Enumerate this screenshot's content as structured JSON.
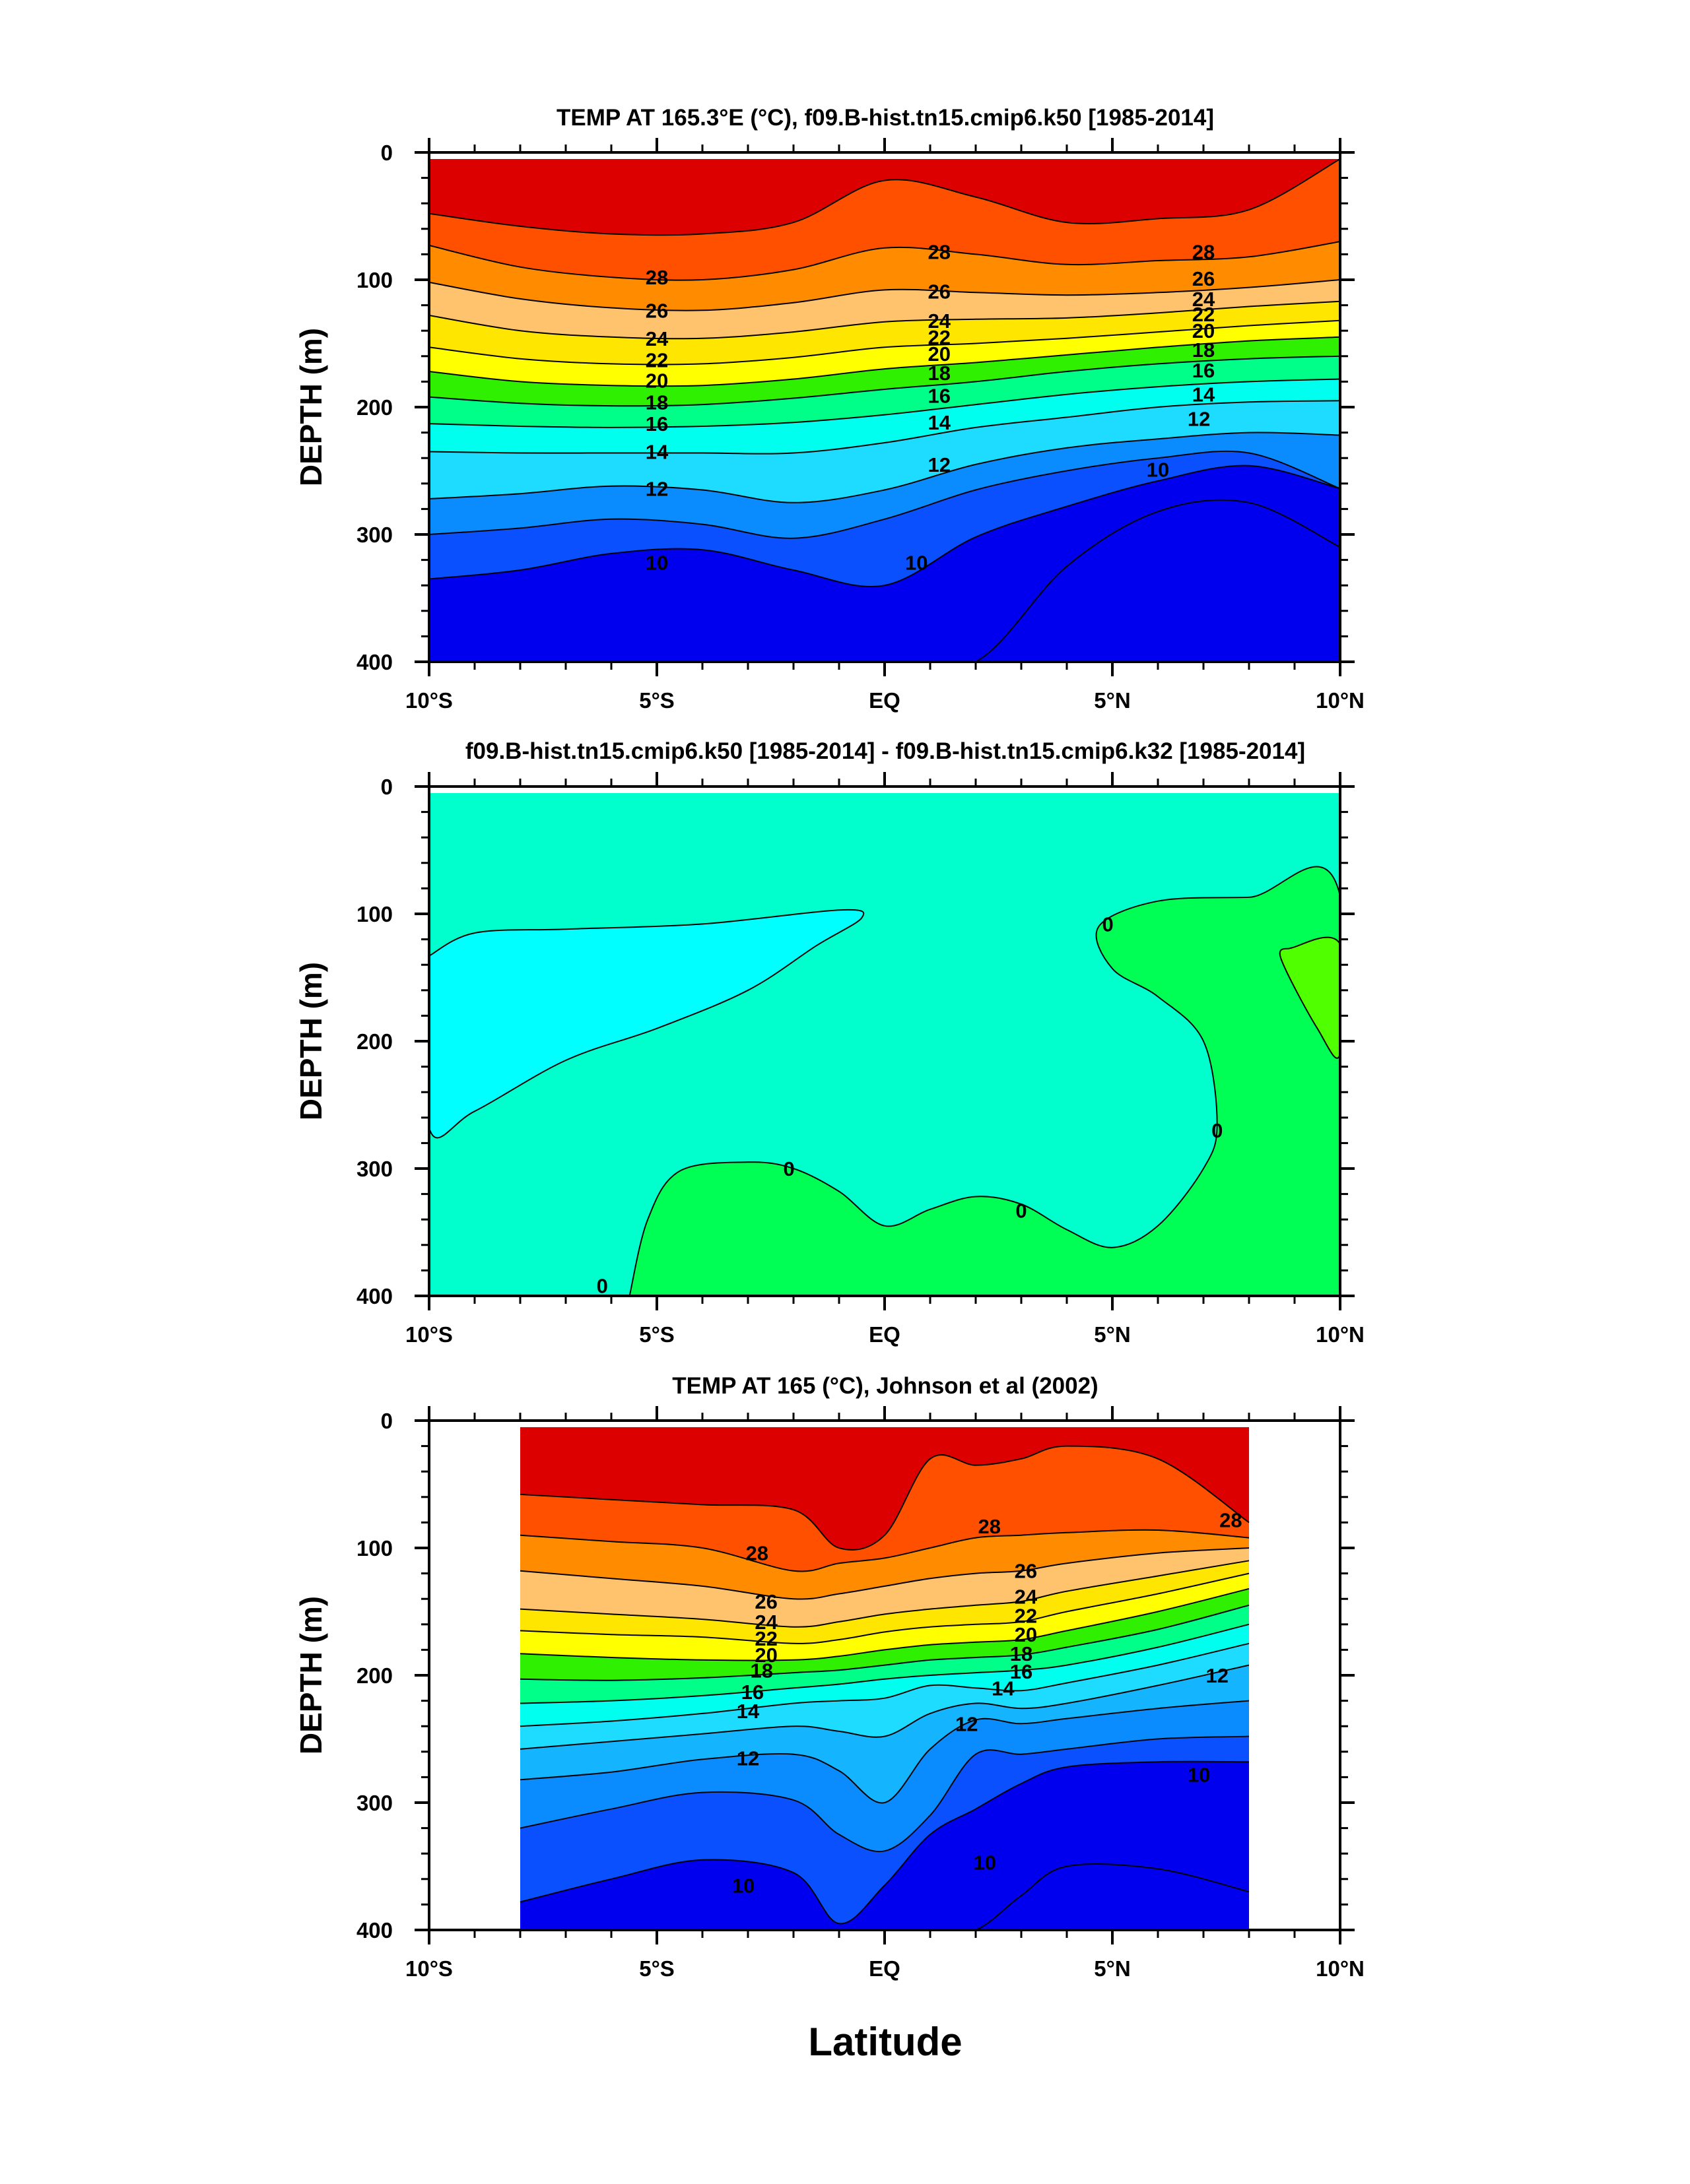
{
  "figure": {
    "xlabel": "Latitude"
  },
  "colors": {
    "scale": [
      "#0000ee",
      "#0a50ff",
      "#0a8cff",
      "#14b4ff",
      "#1edcff",
      "#00ffee",
      "#00ff88",
      "#2ef000",
      "#b4ff00",
      "#ffff00",
      "#ffe600",
      "#ffc36e",
      "#ffaa32",
      "#ff8c00",
      "#ff5000",
      "#ff0000",
      "#dc0000"
    ],
    "diff_minus": "#00ffff",
    "diff_zero": "#00ffcc",
    "diff_plus": "#00ff55",
    "diff_plus2": "#50ff00"
  },
  "chart_data": [
    {
      "type": "contour",
      "title": "TEMP AT 165.3°E (°C), f09.B-hist.tn15.cmip6.k50 [1985-2014]",
      "ylabel": "DEPTH (m)",
      "xlabel": "",
      "xlim": [
        -10,
        10
      ],
      "ylim": [
        400,
        0
      ],
      "xticks": [
        -10,
        -5,
        0,
        5,
        10
      ],
      "xticklabels": [
        "10°S",
        "5°S",
        "EQ",
        "5°N",
        "10°N"
      ],
      "yticks": [
        0,
        100,
        200,
        300,
        400
      ],
      "yticklabels": [
        "0",
        "100",
        "200",
        "300",
        "400"
      ],
      "data_extent_lat": [
        -10,
        10
      ],
      "contour_levels": [
        9,
        10,
        11,
        12,
        13,
        14,
        15,
        16,
        17,
        18,
        19,
        20,
        21,
        22,
        23,
        24,
        25,
        26,
        27,
        28,
        29
      ],
      "isotherm_depth_m": {
        "lat": [
          -10,
          -8,
          -6,
          -4,
          -2,
          0,
          2,
          4,
          6,
          8,
          10
        ],
        "t29": [
          48,
          58,
          64,
          64,
          55,
          22,
          35,
          55,
          52,
          45,
          0
        ],
        "t28": [
          73,
          90,
          98,
          100,
          92,
          75,
          80,
          88,
          85,
          82,
          70
        ],
        "t26": [
          102,
          115,
          122,
          124,
          118,
          108,
          110,
          112,
          110,
          106,
          100
        ],
        "t24": [
          128,
          140,
          145,
          146,
          141,
          133,
          131,
          130,
          126,
          121,
          117
        ],
        "t22": [
          153,
          162,
          166,
          166,
          161,
          153,
          150,
          146,
          141,
          136,
          132
        ],
        "t20": [
          172,
          180,
          183,
          183,
          178,
          170,
          165,
          159,
          153,
          148,
          145
        ],
        "t18": [
          192,
          197,
          199,
          198,
          193,
          186,
          180,
          172,
          166,
          162,
          160
        ],
        "t16": [
          213,
          215,
          216,
          215,
          212,
          206,
          198,
          190,
          184,
          180,
          178
        ],
        "t14": [
          235,
          236,
          236,
          236,
          236,
          228,
          216,
          208,
          200,
          196,
          195
        ],
        "t12": [
          272,
          268,
          262,
          265,
          275,
          265,
          245,
          232,
          225,
          220,
          222
        ],
        "t11": [
          300,
          295,
          288,
          292,
          303,
          288,
          265,
          250,
          240,
          236,
          264
        ],
        "t10": [
          335,
          328,
          315,
          312,
          328,
          340,
          302,
          278,
          258,
          246,
          264
        ],
        "t9": [
          400,
          400,
          400,
          400,
          400,
          400,
          400,
          325,
          282,
          275,
          310
        ]
      },
      "contour_labels": [
        {
          "text": "28",
          "lat": -5.0,
          "depth": 98
        },
        {
          "text": "26",
          "lat": -5.0,
          "depth": 124
        },
        {
          "text": "24",
          "lat": -5.0,
          "depth": 146
        },
        {
          "text": "22",
          "lat": -5.0,
          "depth": 163
        },
        {
          "text": "20",
          "lat": -5.0,
          "depth": 179
        },
        {
          "text": "18",
          "lat": -5.0,
          "depth": 196
        },
        {
          "text": "16",
          "lat": -5.0,
          "depth": 213
        },
        {
          "text": "14",
          "lat": -5.0,
          "depth": 235
        },
        {
          "text": "12",
          "lat": -5.0,
          "depth": 264
        },
        {
          "text": "10",
          "lat": -5.0,
          "depth": 322
        },
        {
          "text": "28",
          "lat": 1.2,
          "depth": 78
        },
        {
          "text": "26",
          "lat": 1.2,
          "depth": 109
        },
        {
          "text": "24",
          "lat": 1.2,
          "depth": 132
        },
        {
          "text": "22",
          "lat": 1.2,
          "depth": 145
        },
        {
          "text": "20",
          "lat": 1.2,
          "depth": 158
        },
        {
          "text": "18",
          "lat": 1.2,
          "depth": 173
        },
        {
          "text": "16",
          "lat": 1.2,
          "depth": 191
        },
        {
          "text": "14",
          "lat": 1.2,
          "depth": 212
        },
        {
          "text": "12",
          "lat": 1.2,
          "depth": 245
        },
        {
          "text": "10",
          "lat": 0.7,
          "depth": 322
        },
        {
          "text": "28",
          "lat": 7.0,
          "depth": 78
        },
        {
          "text": "26",
          "lat": 7.0,
          "depth": 99
        },
        {
          "text": "24",
          "lat": 7.0,
          "depth": 115
        },
        {
          "text": "22",
          "lat": 7.0,
          "depth": 127
        },
        {
          "text": "20",
          "lat": 7.0,
          "depth": 140
        },
        {
          "text": "18",
          "lat": 7.0,
          "depth": 155
        },
        {
          "text": "16",
          "lat": 7.0,
          "depth": 171
        },
        {
          "text": "14",
          "lat": 7.0,
          "depth": 190
        },
        {
          "text": "12",
          "lat": 6.9,
          "depth": 209
        },
        {
          "text": "10",
          "lat": 6.0,
          "depth": 249
        }
      ]
    },
    {
      "type": "contour",
      "title": "f09.B-hist.tn15.cmip6.k50 [1985-2014] - f09.B-hist.tn15.cmip6.k32 [1985-2014]",
      "ylabel": "DEPTH (m)",
      "xlabel": "",
      "xlim": [
        -10,
        10
      ],
      "ylim": [
        400,
        0
      ],
      "xticks": [
        -10,
        -5,
        0,
        5,
        10
      ],
      "xticklabels": [
        "10°S",
        "5°S",
        "EQ",
        "5°N",
        "10°N"
      ],
      "yticks": [
        0,
        100,
        200,
        300,
        400
      ],
      "yticklabels": [
        "0",
        "100",
        "200",
        "300",
        "400"
      ],
      "data_extent_lat": [
        -10,
        10
      ],
      "regions": [
        {
          "sign": "negative",
          "outline": [
            [
              -10,
              133
            ],
            [
              -9,
              115
            ],
            [
              -7,
              112
            ],
            [
              -4,
              108
            ],
            [
              -1,
              97
            ],
            [
              -0.5,
              103
            ],
            [
              -1.5,
              125
            ],
            [
              -3,
              160
            ],
            [
              -5,
              190
            ],
            [
              -7,
              215
            ],
            [
              -9,
              255
            ],
            [
              -10,
              268
            ]
          ]
        },
        {
          "sign": "positive",
          "outline": [
            [
              -5.6,
              400
            ],
            [
              -5.2,
              340
            ],
            [
              -4.5,
              302
            ],
            [
              -3,
              295
            ],
            [
              -2,
              300
            ],
            [
              -1,
              318
            ],
            [
              0,
              345
            ],
            [
              1,
              332
            ],
            [
              2,
              322
            ],
            [
              3,
              328
            ],
            [
              4,
              348
            ],
            [
              5,
              362
            ],
            [
              6,
              345
            ],
            [
              7,
              300
            ],
            [
              7.3,
              265
            ],
            [
              7,
              200
            ],
            [
              6,
              165
            ],
            [
              5,
              143
            ],
            [
              4.7,
              110
            ],
            [
              6,
              90
            ],
            [
              8,
              87
            ],
            [
              10,
              86
            ],
            [
              10,
              400
            ]
          ]
        },
        {
          "sign": "positive2",
          "outline": [
            [
              8.9,
              127
            ],
            [
              10,
              124
            ],
            [
              10,
              210
            ],
            [
              9.5,
              190
            ],
            [
              8.7,
              135
            ]
          ]
        }
      ],
      "contour_labels": [
        {
          "text": "0",
          "lat": 4.9,
          "depth": 108
        },
        {
          "text": "0",
          "lat": 7.3,
          "depth": 270
        },
        {
          "text": "0",
          "lat": -2.1,
          "depth": 300
        },
        {
          "text": "0",
          "lat": 3.0,
          "depth": 333
        },
        {
          "text": "0",
          "lat": -6.2,
          "depth": 392
        }
      ]
    },
    {
      "type": "contour",
      "title": "TEMP AT 165 (°C), Johnson et al (2002)",
      "ylabel": "DEPTH (m)",
      "xlabel": "Latitude",
      "xlim": [
        -10,
        10
      ],
      "ylim": [
        400,
        0
      ],
      "xticks": [
        -10,
        -5,
        0,
        5,
        10
      ],
      "xticklabels": [
        "10°S",
        "5°S",
        "EQ",
        "5°N",
        "10°N"
      ],
      "yticks": [
        0,
        100,
        200,
        300,
        400
      ],
      "yticklabels": [
        "0",
        "100",
        "200",
        "300",
        "400"
      ],
      "data_extent_lat": [
        -8,
        8
      ],
      "contour_levels": [
        8,
        9,
        10,
        11,
        12,
        13,
        14,
        15,
        16,
        17,
        18,
        19,
        20,
        21,
        22,
        23,
        24,
        25,
        26,
        27,
        28,
        29
      ],
      "isotherm_depth_m": {
        "lat": [
          -8,
          -6,
          -4,
          -2,
          -1,
          0,
          1,
          2,
          3,
          4,
          6,
          8
        ],
        "t29": [
          58,
          62,
          66,
          70,
          100,
          90,
          30,
          35,
          30,
          20,
          30,
          80
        ],
        "t28": [
          90,
          95,
          100,
          118,
          112,
          108,
          100,
          92,
          90,
          88,
          86,
          92
        ],
        "t26": [
          118,
          124,
          130,
          140,
          136,
          130,
          124,
          120,
          118,
          112,
          104,
          100
        ],
        "t24": [
          148,
          152,
          156,
          162,
          158,
          152,
          148,
          145,
          142,
          134,
          122,
          110
        ],
        "t22": [
          165,
          168,
          170,
          175,
          172,
          166,
          162,
          160,
          158,
          150,
          136,
          120
        ],
        "t20": [
          183,
          186,
          188,
          188,
          185,
          180,
          176,
          174,
          172,
          165,
          150,
          132
        ],
        "t18": [
          203,
          204,
          202,
          198,
          196,
          192,
          188,
          186,
          184,
          178,
          164,
          145
        ],
        "t16": [
          222,
          220,
          216,
          210,
          207,
          203,
          200,
          198,
          196,
          192,
          178,
          160
        ],
        "t14": [
          240,
          236,
          230,
          222,
          220,
          218,
          208,
          210,
          212,
          206,
          192,
          175
        ],
        "t13": [
          258,
          252,
          246,
          240,
          244,
          248,
          230,
          222,
          226,
          222,
          208,
          192
        ],
        "t12": [
          282,
          276,
          266,
          262,
          275,
          300,
          258,
          235,
          238,
          234,
          226,
          220
        ],
        "t11": [
          320,
          305,
          292,
          298,
          325,
          338,
          310,
          262,
          262,
          258,
          250,
          248
        ],
        "t10": [
          378,
          360,
          345,
          355,
          395,
          365,
          325,
          305,
          285,
          272,
          268,
          268
        ],
        "t9": [
          400,
          400,
          400,
          400,
          400,
          400,
          400,
          400,
          373,
          350,
          352,
          370
        ]
      },
      "contour_labels": [
        {
          "text": "28",
          "lat": -2.8,
          "depth": 104
        },
        {
          "text": "26",
          "lat": -2.6,
          "depth": 142
        },
        {
          "text": "24",
          "lat": -2.6,
          "depth": 158
        },
        {
          "text": "22",
          "lat": -2.6,
          "depth": 171
        },
        {
          "text": "20",
          "lat": -2.6,
          "depth": 184
        },
        {
          "text": "18",
          "lat": -2.7,
          "depth": 196
        },
        {
          "text": "16",
          "lat": -2.9,
          "depth": 213
        },
        {
          "text": "14",
          "lat": -3.0,
          "depth": 228
        },
        {
          "text": "12",
          "lat": -3.0,
          "depth": 265
        },
        {
          "text": "10",
          "lat": -3.1,
          "depth": 365
        },
        {
          "text": "28",
          "lat": 2.3,
          "depth": 83
        },
        {
          "text": "26",
          "lat": 3.1,
          "depth": 118
        },
        {
          "text": "24",
          "lat": 3.1,
          "depth": 138
        },
        {
          "text": "22",
          "lat": 3.1,
          "depth": 153
        },
        {
          "text": "20",
          "lat": 3.1,
          "depth": 168
        },
        {
          "text": "18",
          "lat": 3.0,
          "depth": 183
        },
        {
          "text": "16",
          "lat": 3.0,
          "depth": 197
        },
        {
          "text": "14",
          "lat": 2.6,
          "depth": 210
        },
        {
          "text": "12",
          "lat": 1.8,
          "depth": 238
        },
        {
          "text": "10",
          "lat": 2.2,
          "depth": 347
        },
        {
          "text": "28",
          "lat": 7.6,
          "depth": 78
        },
        {
          "text": "12",
          "lat": 7.3,
          "depth": 200
        },
        {
          "text": "10",
          "lat": 6.9,
          "depth": 278
        }
      ]
    }
  ]
}
